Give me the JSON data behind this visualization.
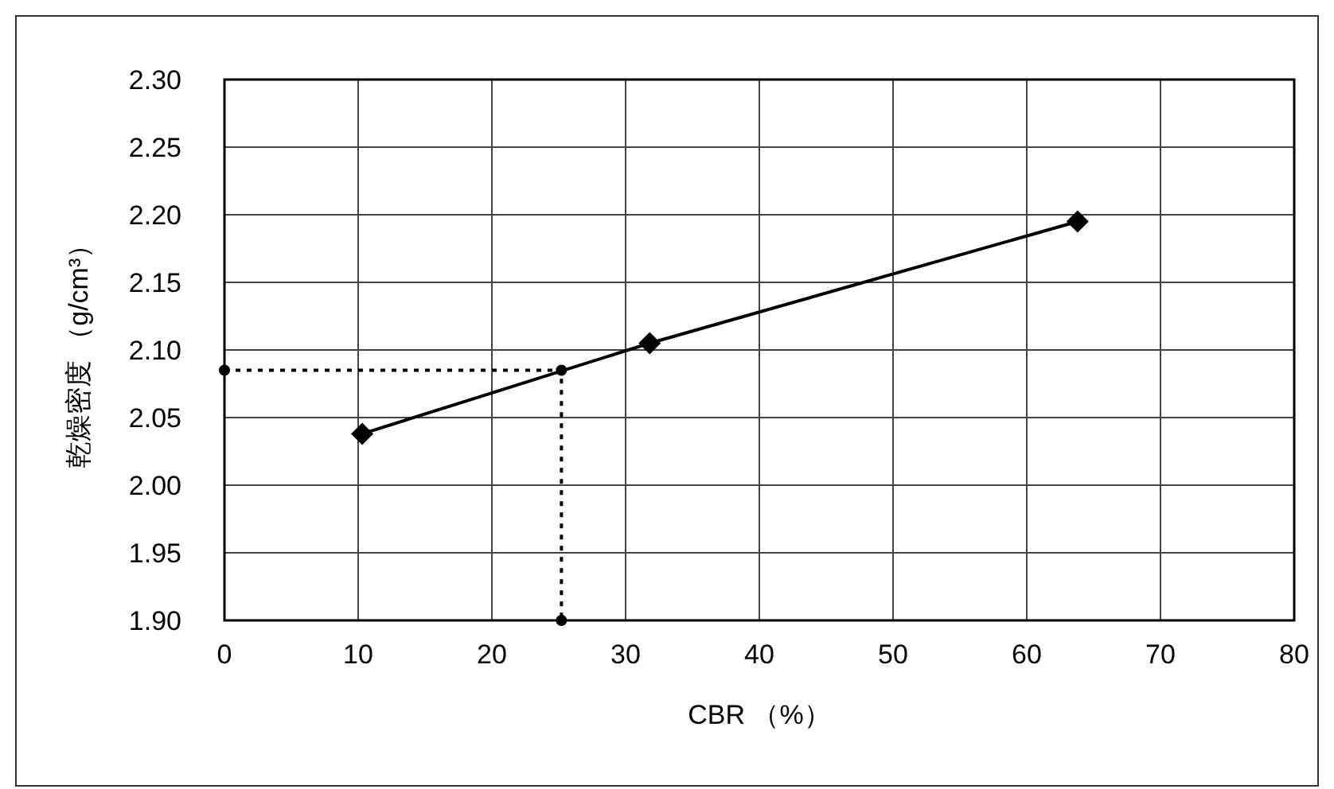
{
  "chart_data": {
    "type": "line",
    "xlabel": "CBR （%）",
    "ylabel": "乾燥密度 （g/cm³）",
    "xlim": [
      0,
      80
    ],
    "xticks": [
      0,
      10,
      20,
      30,
      40,
      50,
      60,
      70,
      80
    ],
    "ylim": [
      1.9,
      2.3
    ],
    "yticks": [
      {
        "value": 1.9,
        "label": "1.90"
      },
      {
        "value": 1.95,
        "label": "1.95"
      },
      {
        "value": 2.0,
        "label": "2.00"
      },
      {
        "value": 2.05,
        "label": "2.05"
      },
      {
        "value": 2.1,
        "label": "2.10"
      },
      {
        "value": 2.15,
        "label": "2.15"
      },
      {
        "value": 2.2,
        "label": "2.20"
      },
      {
        "value": 2.25,
        "label": "2.25"
      },
      {
        "value": 2.3,
        "label": "2.30"
      }
    ],
    "grid": true,
    "series": [
      {
        "color": "#000000",
        "x": [
          10.3,
          31.8,
          63.8
        ],
        "values": [
          2.038,
          2.105,
          2.195
        ],
        "marker": "diamond",
        "line_style": "solid"
      },
      {
        "color": "#000000",
        "x": [
          0,
          25.2,
          25.2
        ],
        "values": [
          2.085,
          2.085,
          1.9
        ],
        "marker": "circle",
        "line_style": "dotted"
      }
    ]
  }
}
